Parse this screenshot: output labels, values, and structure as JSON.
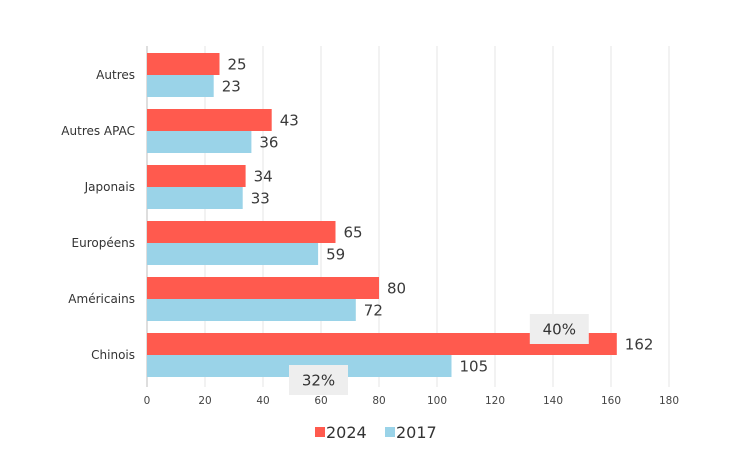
{
  "chart_data": {
    "type": "bar",
    "orientation": "horizontal",
    "categories": [
      "Autres",
      "Autres APAC",
      "Japonais",
      "Européens",
      "Américains",
      "Chinois"
    ],
    "series": [
      {
        "name": "2024",
        "color": "#ff5a4e",
        "values": [
          25,
          43,
          34,
          65,
          80,
          162
        ]
      },
      {
        "name": "2017",
        "color": "#9ad3e8",
        "values": [
          23,
          36,
          33,
          59,
          72,
          105
        ]
      }
    ],
    "xlim": [
      0,
      180
    ],
    "xticks": [
      0,
      20,
      40,
      60,
      80,
      100,
      120,
      140,
      160,
      180
    ],
    "grid": "vertical",
    "legend_position": "bottom-center",
    "annotations": [
      {
        "text": "40%",
        "category": "Chinois",
        "series": "2024"
      },
      {
        "text": "32%",
        "category": "Chinois",
        "series": "2017"
      }
    ]
  }
}
